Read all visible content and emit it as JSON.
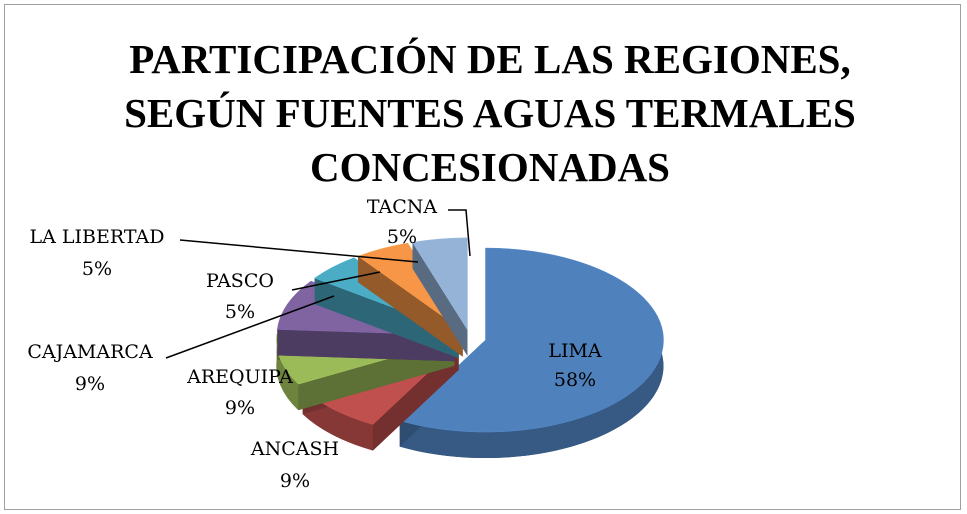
{
  "chart_data": {
    "type": "pie",
    "title": "PARTICIPACIÓN DE LAS REGIONES, SEGÚN FUENTES AGUAS TERMALES CONCESIONADAS",
    "categories": [
      "LIMA",
      "ANCASH",
      "AREQUIPA",
      "CAJAMARCA",
      "PASCO",
      "LA LIBERTAD",
      "TACNA"
    ],
    "values": [
      58,
      9,
      9,
      9,
      5,
      5,
      5
    ],
    "value_labels": [
      "58%",
      "9%",
      "9%",
      "9%",
      "5%",
      "5%",
      "5%"
    ],
    "colors": [
      "#4f81bd",
      "#c0504d",
      "#9bbb59",
      "#8064a2",
      "#4bacc6",
      "#f79646",
      "#95b3d7"
    ]
  }
}
